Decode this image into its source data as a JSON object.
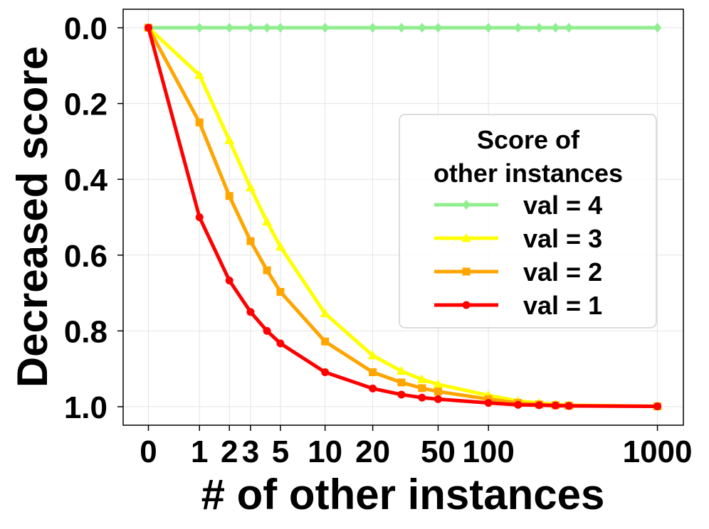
{
  "chart_data": {
    "type": "line",
    "title": "",
    "xlabel": "# of other instances",
    "ylabel": "Decreased score",
    "y_inverted": true,
    "ylim": [
      0.0,
      1.0
    ],
    "grid": true,
    "x": [
      0,
      1,
      2,
      3,
      4,
      5,
      10,
      20,
      30,
      40,
      50,
      100,
      150,
      200,
      250,
      300,
      1000
    ],
    "xticks": [
      {
        "value": 0,
        "label": "0"
      },
      {
        "value": 1,
        "label": "1"
      },
      {
        "value": 2,
        "label": "2"
      },
      {
        "value": 3,
        "label": "3"
      },
      {
        "value": 5,
        "label": "5"
      },
      {
        "value": 10,
        "label": "10"
      },
      {
        "value": 20,
        "label": "20"
      },
      {
        "value": 50,
        "label": "50"
      },
      {
        "value": 100,
        "label": "100"
      },
      {
        "value": 1000,
        "label": "1000"
      }
    ],
    "yticks": [
      "0.0",
      "0.2",
      "0.4",
      "0.6",
      "0.8",
      "1.0"
    ],
    "legend": {
      "title_line1": "Score of",
      "title_line2": "other instances",
      "placement": "center-right"
    },
    "series": [
      {
        "name": "val = 4",
        "color": "#90ee90",
        "marker": "diamond",
        "values": [
          0,
          0,
          0,
          0,
          0,
          0,
          0,
          0,
          0,
          0,
          0,
          0,
          0,
          0,
          0,
          0,
          0
        ]
      },
      {
        "name": "val = 3",
        "color": "#ffff00",
        "marker": "triangle",
        "values": [
          0,
          0.125,
          0.297,
          0.422,
          0.512,
          0.578,
          0.754,
          0.865,
          0.906,
          0.928,
          0.941,
          0.97,
          0.985,
          0.99,
          0.994,
          0.996,
          0.999
        ]
      },
      {
        "name": "val = 2",
        "color": "#ffa500",
        "marker": "square",
        "values": [
          0,
          0.25,
          0.444,
          0.563,
          0.64,
          0.697,
          0.828,
          0.909,
          0.936,
          0.951,
          0.96,
          0.98,
          0.99,
          0.994,
          0.996,
          0.997,
          0.999
        ]
      },
      {
        "name": "val = 1",
        "color": "#ff0000",
        "marker": "circle",
        "values": [
          0,
          0.5,
          0.667,
          0.75,
          0.8,
          0.833,
          0.909,
          0.952,
          0.968,
          0.976,
          0.98,
          0.99,
          0.995,
          0.996,
          0.997,
          0.998,
          0.999
        ]
      }
    ]
  }
}
